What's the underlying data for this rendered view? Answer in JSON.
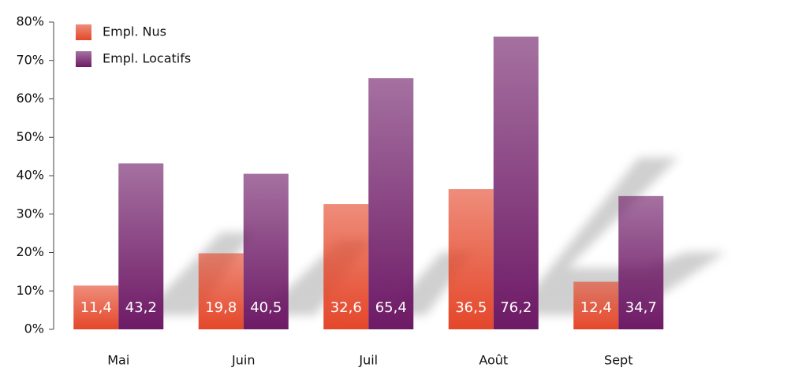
{
  "chart_data": {
    "type": "bar",
    "categories": [
      "Mai",
      "Juin",
      "Juil",
      "Août",
      "Sept"
    ],
    "series": [
      {
        "name": "Empl. Nus",
        "color": "#e4472a",
        "values": [
          11.4,
          19.8,
          32.6,
          36.5,
          12.4
        ],
        "value_labels": [
          "11,4",
          "19,8",
          "32,6",
          "36,5",
          "12,4"
        ]
      },
      {
        "name": "Empl. Locatifs",
        "color": "#6e1a66",
        "values": [
          43.2,
          40.5,
          65.4,
          76.2,
          34.7
        ],
        "value_labels": [
          "43,2",
          "40,5",
          "65,4",
          "76,2",
          "34,7"
        ]
      }
    ],
    "ylim": [
      0,
      80
    ],
    "yticks": [
      {
        "value": 0,
        "label": "0%"
      },
      {
        "value": 10,
        "label": "10%"
      },
      {
        "value": 20,
        "label": "20%"
      },
      {
        "value": 30,
        "label": "30%"
      },
      {
        "value": 40,
        "label": "40%"
      },
      {
        "value": 50,
        "label": "50%"
      },
      {
        "value": 60,
        "label": "60%"
      },
      {
        "value": 70,
        "label": "70%"
      },
      {
        "value": 80,
        "label": "80%"
      }
    ],
    "legend": "upper left"
  }
}
